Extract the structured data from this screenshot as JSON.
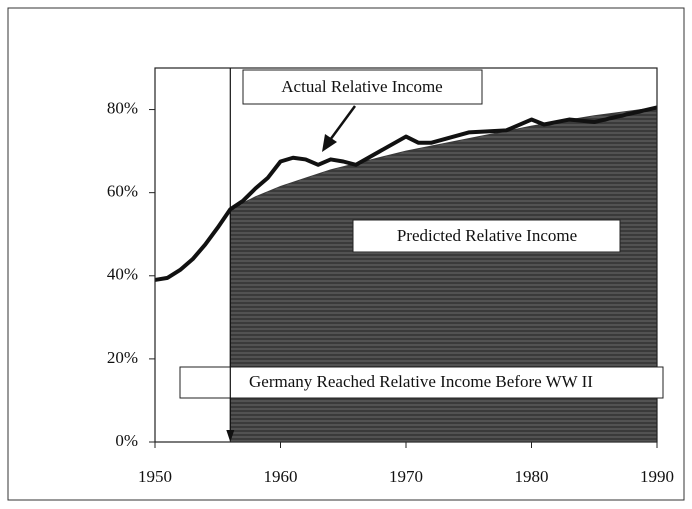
{
  "chart_data": {
    "type": "line",
    "xlim": [
      1950,
      1990
    ],
    "xticks": [
      1950,
      1960,
      1970,
      1980,
      1990
    ],
    "ylim": [
      0,
      90
    ],
    "yticks": [
      {
        "value": 0,
        "label": "0%"
      },
      {
        "value": 20,
        "label": "20%"
      },
      {
        "value": 40,
        "label": "40%"
      },
      {
        "value": 60,
        "label": "60%"
      },
      {
        "value": 80,
        "label": "80%"
      }
    ],
    "series": [
      {
        "name": "Predicted Relative Income",
        "kind": "area",
        "color": "#3a3a3a",
        "x": [
          1956,
          1958,
          1960,
          1962,
          1964,
          1966,
          1970,
          1975,
          1980,
          1985,
          1990
        ],
        "values": [
          56,
          59,
          61.5,
          63.5,
          65.5,
          67,
          70,
          73,
          76,
          78.5,
          80.5
        ]
      },
      {
        "name": "Actual Relative Income",
        "kind": "line",
        "color": "#111111",
        "x": [
          1950,
          1951,
          1952,
          1953,
          1954,
          1955,
          1956,
          1957,
          1958,
          1959,
          1960,
          1961,
          1962,
          1963,
          1964,
          1965,
          1966,
          1970,
          1971,
          1972,
          1975,
          1978,
          1980,
          1981,
          1983,
          1985,
          1990
        ],
        "values": [
          39,
          39.5,
          41.4,
          44,
          47.5,
          51.6,
          56,
          58,
          61,
          63.6,
          67.5,
          68.4,
          68,
          66.7,
          68,
          67.5,
          66.7,
          73.5,
          72,
          72,
          74.5,
          75,
          77.6,
          76.4,
          77.6,
          77,
          80.5
        ]
      }
    ],
    "annotation": "Germany Reached Relative Income Before WW II",
    "annotation_x": 1956
  }
}
